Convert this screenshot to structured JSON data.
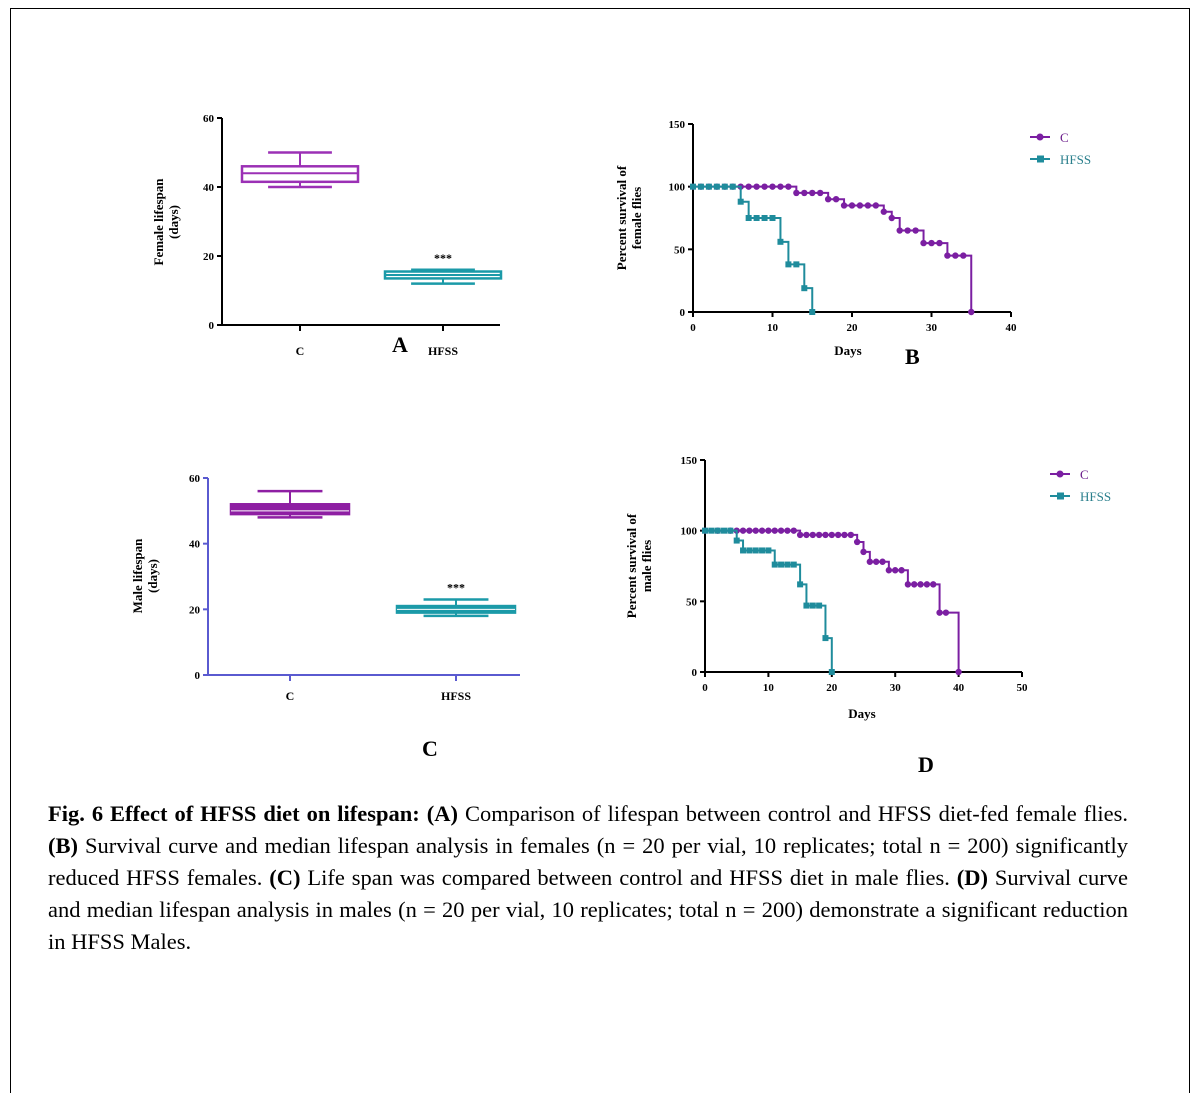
{
  "chart_data": [
    {
      "type": "box",
      "panel": "A",
      "ylabel": "Female lifespan\n(days)",
      "ylim": [
        0,
        60
      ],
      "yticks": [
        "0",
        "20",
        "40",
        "60"
      ],
      "categories": [
        "C",
        "HFSS"
      ],
      "boxes": [
        {
          "category": "C",
          "min": 40,
          "q1": 41.5,
          "median": 44,
          "q3": 46,
          "max": 50
        },
        {
          "category": "HFSS",
          "min": 12,
          "q1": 13.5,
          "median": 14.5,
          "q3": 15.5,
          "max": 16
        }
      ],
      "annotations": [
        {
          "category": "HFSS",
          "text": "***"
        }
      ],
      "color": "#9b30b5"
    },
    {
      "type": "line",
      "panel": "B",
      "ylabel": "Percent survival of\nfemale flies",
      "xlabel": "Days",
      "xlim": [
        0,
        40
      ],
      "ylim": [
        0,
        150
      ],
      "xticks": [
        "0",
        "10",
        "20",
        "30",
        "40"
      ],
      "yticks": [
        "0",
        "50",
        "100",
        "150"
      ],
      "legend": "top-right",
      "series": [
        {
          "name": "C",
          "color": "#7b1fa2",
          "step": true,
          "points": [
            [
              0,
              100
            ],
            [
              1,
              100
            ],
            [
              2,
              100
            ],
            [
              3,
              100
            ],
            [
              4,
              100
            ],
            [
              5,
              100
            ],
            [
              6,
              100
            ],
            [
              7,
              100
            ],
            [
              8,
              100
            ],
            [
              9,
              100
            ],
            [
              10,
              100
            ],
            [
              11,
              100
            ],
            [
              12,
              100
            ],
            [
              13,
              95
            ],
            [
              14,
              95
            ],
            [
              15,
              95
            ],
            [
              16,
              95
            ],
            [
              17,
              90
            ],
            [
              18,
              90
            ],
            [
              19,
              85
            ],
            [
              20,
              85
            ],
            [
              21,
              85
            ],
            [
              22,
              85
            ],
            [
              23,
              85
            ],
            [
              24,
              80
            ],
            [
              25,
              75
            ],
            [
              26,
              65
            ],
            [
              27,
              65
            ],
            [
              28,
              65
            ],
            [
              29,
              55
            ],
            [
              30,
              55
            ],
            [
              31,
              55
            ],
            [
              32,
              45
            ],
            [
              33,
              45
            ],
            [
              34,
              45
            ],
            [
              35,
              0
            ]
          ]
        },
        {
          "name": "HFSS",
          "color": "#1f8c9c",
          "step": true,
          "points": [
            [
              0,
              100
            ],
            [
              1,
              100
            ],
            [
              2,
              100
            ],
            [
              3,
              100
            ],
            [
              4,
              100
            ],
            [
              5,
              100
            ],
            [
              6,
              88
            ],
            [
              7,
              75
            ],
            [
              8,
              75
            ],
            [
              9,
              75
            ],
            [
              10,
              75
            ],
            [
              11,
              56
            ],
            [
              12,
              38
            ],
            [
              13,
              38
            ],
            [
              14,
              19
            ],
            [
              15,
              0
            ]
          ]
        }
      ]
    },
    {
      "type": "box",
      "panel": "C",
      "ylabel": "Male lifespan\n(days)",
      "ylim": [
        0,
        60
      ],
      "yticks": [
        "0",
        "20",
        "40",
        "60"
      ],
      "categories": [
        "C",
        "HFSS"
      ],
      "boxes": [
        {
          "category": "C",
          "min": 48,
          "q1": 49,
          "median": 50,
          "q3": 52,
          "max": 56
        },
        {
          "category": "HFSS",
          "min": 18,
          "q1": 19,
          "median": 20,
          "q3": 21,
          "max": 23
        }
      ],
      "annotations": [
        {
          "category": "HFSS",
          "text": "***"
        }
      ],
      "color": "#8e1fa3",
      "color2": "#1b9aa8",
      "axis_color": "#5a5ad0"
    },
    {
      "type": "line",
      "panel": "D",
      "ylabel": "Percent survival of\nmale flies",
      "xlabel": "Days",
      "xlim": [
        0,
        50
      ],
      "ylim": [
        0,
        150
      ],
      "xticks": [
        "0",
        "10",
        "20",
        "30",
        "40",
        "50"
      ],
      "yticks": [
        "0",
        "50",
        "100",
        "150"
      ],
      "legend": "top-right",
      "series": [
        {
          "name": "C",
          "color": "#7b1fa2",
          "step": true,
          "points": [
            [
              0,
              100
            ],
            [
              2,
              100
            ],
            [
              4,
              100
            ],
            [
              5,
              100
            ],
            [
              6,
              100
            ],
            [
              7,
              100
            ],
            [
              8,
              100
            ],
            [
              9,
              100
            ],
            [
              10,
              100
            ],
            [
              11,
              100
            ],
            [
              12,
              100
            ],
            [
              13,
              100
            ],
            [
              14,
              100
            ],
            [
              15,
              97
            ],
            [
              16,
              97
            ],
            [
              17,
              97
            ],
            [
              18,
              97
            ],
            [
              19,
              97
            ],
            [
              20,
              97
            ],
            [
              21,
              97
            ],
            [
              22,
              97
            ],
            [
              23,
              97
            ],
            [
              24,
              92
            ],
            [
              25,
              85
            ],
            [
              26,
              78
            ],
            [
              27,
              78
            ],
            [
              28,
              78
            ],
            [
              29,
              72
            ],
            [
              30,
              72
            ],
            [
              31,
              72
            ],
            [
              32,
              62
            ],
            [
              33,
              62
            ],
            [
              34,
              62
            ],
            [
              35,
              62
            ],
            [
              36,
              62
            ],
            [
              37,
              42
            ],
            [
              38,
              42
            ],
            [
              40,
              0
            ]
          ]
        },
        {
          "name": "HFSS",
          "color": "#1f8c9c",
          "step": true,
          "points": [
            [
              0,
              100
            ],
            [
              1,
              100
            ],
            [
              2,
              100
            ],
            [
              3,
              100
            ],
            [
              4,
              100
            ],
            [
              5,
              93
            ],
            [
              6,
              86
            ],
            [
              7,
              86
            ],
            [
              8,
              86
            ],
            [
              9,
              86
            ],
            [
              10,
              86
            ],
            [
              11,
              76
            ],
            [
              12,
              76
            ],
            [
              13,
              76
            ],
            [
              14,
              76
            ],
            [
              15,
              62
            ],
            [
              16,
              47
            ],
            [
              17,
              47
            ],
            [
              18,
              47
            ],
            [
              19,
              24
            ],
            [
              20,
              0
            ]
          ]
        }
      ]
    }
  ],
  "panel_labels": {
    "a": "A",
    "b": "B",
    "c": "C",
    "d": "D"
  },
  "caption": {
    "lead": "Fig. 6 Effect of HFSS diet on lifespan:",
    "a_label": "(A)",
    "a_text": " Comparison of lifespan between control and HFSS diet-fed female flies. ",
    "b_label": "(B)",
    "b_text": " Survival curve and median lifespan analysis in females (n = 20 per vial, 10 replicates; total n = 200) significantly reduced HFSS females. ",
    "c_label": "(C)",
    "c_text": " Life span was compared between control and HFSS diet in male flies. ",
    "d_label": "(D)",
    "d_text": " Survival curve and median lifespan analysis in males (n = 20 per vial, 10 replicates; total n = 200) demonstrate a significant reduction in HFSS Males."
  }
}
